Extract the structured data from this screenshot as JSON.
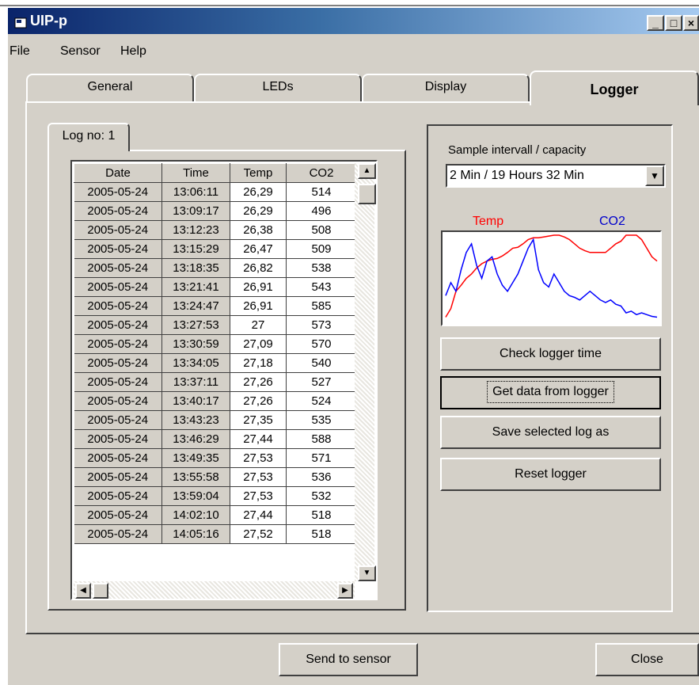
{
  "window": {
    "title": "UIP-p",
    "minimize": "_",
    "maximize": "□",
    "close": "×"
  },
  "menu": [
    "File",
    "Sensor",
    "Help"
  ],
  "tabs": [
    "General",
    "LEDs",
    "Display",
    "Logger"
  ],
  "log_tab": "Log no: 1",
  "grid": {
    "headers": [
      "Date",
      "Time",
      "Temp",
      "CO2"
    ],
    "rows": [
      [
        "2005-05-24",
        "13:06:11",
        "26,29",
        "514"
      ],
      [
        "2005-05-24",
        "13:09:17",
        "26,29",
        "496"
      ],
      [
        "2005-05-24",
        "13:12:23",
        "26,38",
        "508"
      ],
      [
        "2005-05-24",
        "13:15:29",
        "26,47",
        "509"
      ],
      [
        "2005-05-24",
        "13:18:35",
        "26,82",
        "538"
      ],
      [
        "2005-05-24",
        "13:21:41",
        "26,91",
        "543"
      ],
      [
        "2005-05-24",
        "13:24:47",
        "26,91",
        "585"
      ],
      [
        "2005-05-24",
        "13:27:53",
        "27",
        "573"
      ],
      [
        "2005-05-24",
        "13:30:59",
        "27,09",
        "570"
      ],
      [
        "2005-05-24",
        "13:34:05",
        "27,18",
        "540"
      ],
      [
        "2005-05-24",
        "13:37:11",
        "27,26",
        "527"
      ],
      [
        "2005-05-24",
        "13:40:17",
        "27,26",
        "524"
      ],
      [
        "2005-05-24",
        "13:43:23",
        "27,35",
        "535"
      ],
      [
        "2005-05-24",
        "13:46:29",
        "27,44",
        "588"
      ],
      [
        "2005-05-24",
        "13:49:35",
        "27,53",
        "571"
      ],
      [
        "2005-05-24",
        "13:55:58",
        "27,53",
        "536"
      ],
      [
        "2005-05-24",
        "13:59:04",
        "27,53",
        "532"
      ],
      [
        "2005-05-24",
        "14:02:10",
        "27,44",
        "518"
      ],
      [
        "2005-05-24",
        "14:05:16",
        "27,52",
        "518"
      ]
    ]
  },
  "sample": {
    "label": "Sample intervall / capacity",
    "value": "2 Min / 19 Hours 32 Min"
  },
  "legend": {
    "temp": "Temp",
    "co2": "CO2"
  },
  "colors": {
    "temp": "#ff0000",
    "co2": "#0000ff"
  },
  "chart": {
    "temp_series": [
      0.05,
      0.15,
      0.35,
      0.42,
      0.5,
      0.55,
      0.62,
      0.67,
      0.7,
      0.72,
      0.73,
      0.76,
      0.8,
      0.85,
      0.86,
      0.9,
      0.95,
      0.97,
      0.97,
      0.98,
      0.99,
      1.0,
      1.0,
      0.98,
      0.95,
      0.9,
      0.85,
      0.82,
      0.8,
      0.8,
      0.8,
      0.8,
      0.85,
      0.9,
      0.93,
      1.0,
      1.0,
      1.0,
      0.95,
      0.85,
      0.75,
      0.7
    ],
    "co2_series": [
      0.3,
      0.45,
      0.35,
      0.6,
      0.8,
      0.9,
      0.65,
      0.5,
      0.7,
      0.75,
      0.55,
      0.42,
      0.35,
      0.45,
      0.55,
      0.7,
      0.85,
      0.95,
      0.6,
      0.45,
      0.4,
      0.55,
      0.45,
      0.35,
      0.3,
      0.28,
      0.25,
      0.3,
      0.35,
      0.3,
      0.25,
      0.22,
      0.25,
      0.2,
      0.18,
      0.1,
      0.12,
      0.08,
      0.1,
      0.08,
      0.06,
      0.05
    ]
  },
  "buttons": {
    "check_time": "Check logger time",
    "get_data": "Get data from logger",
    "save_log": "Save selected log as",
    "reset": "Reset logger",
    "send": "Send to sensor",
    "close": "Close"
  }
}
